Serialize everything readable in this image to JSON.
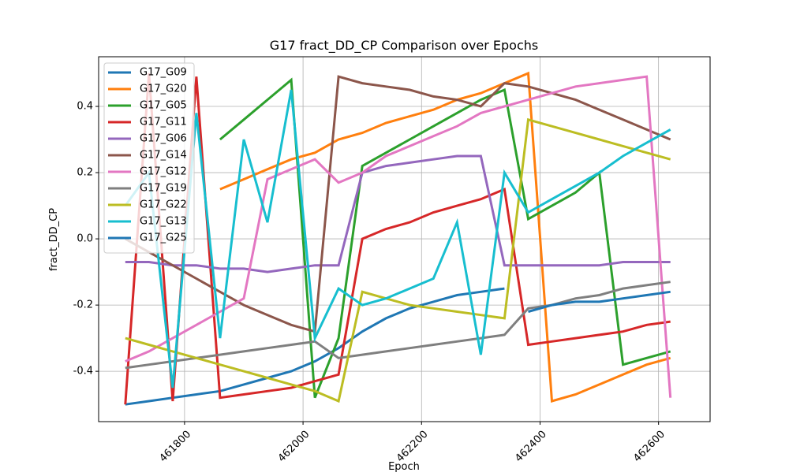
{
  "chart_data": {
    "type": "line",
    "title": "G17 fract_DD_CP Comparison over Epochs",
    "x_label": "Epoch",
    "y_label": "fract_DD_CP",
    "x": [
      461700,
      461740,
      461780,
      461820,
      461860,
      461900,
      461940,
      461980,
      462020,
      462060,
      462100,
      462140,
      462180,
      462220,
      462260,
      462300,
      462340,
      462380,
      462420,
      462460,
      462500,
      462540,
      462580,
      462620
    ],
    "series": [
      {
        "name": "G17_G09",
        "color": "#1f77b4",
        "values": [
          -0.5,
          -0.49,
          -0.48,
          -0.47,
          -0.46,
          -0.44,
          -0.42,
          -0.4,
          -0.37,
          -0.33,
          -0.28,
          -0.24,
          -0.21,
          -0.19,
          -0.17,
          -0.16,
          -0.15,
          null,
          null,
          null,
          null,
          null,
          null,
          null
        ]
      },
      {
        "name": "G17_G20",
        "color": "#ff7f0e",
        "values": [
          null,
          null,
          null,
          null,
          0.15,
          0.18,
          0.21,
          0.24,
          0.26,
          0.3,
          0.32,
          0.35,
          0.37,
          0.39,
          0.42,
          0.44,
          0.47,
          0.5,
          -0.49,
          -0.47,
          -0.44,
          -0.41,
          -0.38,
          -0.36
        ]
      },
      {
        "name": "G17_G05",
        "color": "#2ca02c",
        "values": [
          null,
          null,
          null,
          null,
          0.3,
          0.36,
          0.42,
          0.48,
          -0.48,
          -0.3,
          0.22,
          0.26,
          0.3,
          0.34,
          0.38,
          0.42,
          0.45,
          0.06,
          0.1,
          0.14,
          0.2,
          -0.38,
          -0.36,
          -0.34
        ]
      },
      {
        "name": "G17_G11",
        "color": "#d62728",
        "values": [
          -0.5,
          0.5,
          -0.49,
          0.49,
          -0.48,
          -0.47,
          -0.46,
          -0.45,
          -0.43,
          -0.41,
          0.0,
          0.03,
          0.05,
          0.08,
          0.1,
          0.12,
          0.15,
          -0.32,
          -0.31,
          -0.3,
          -0.29,
          -0.28,
          -0.26,
          -0.25
        ]
      },
      {
        "name": "G17_G06",
        "color": "#9467bd",
        "values": [
          -0.07,
          -0.07,
          -0.08,
          -0.08,
          -0.09,
          -0.09,
          -0.1,
          -0.09,
          -0.08,
          -0.08,
          0.2,
          0.22,
          0.23,
          0.24,
          0.25,
          0.25,
          -0.08,
          -0.08,
          -0.08,
          -0.08,
          -0.08,
          -0.07,
          -0.07,
          -0.07
        ]
      },
      {
        "name": "G17_G14",
        "color": "#8c564b",
        "values": [
          0.0,
          -0.04,
          -0.08,
          -0.12,
          -0.16,
          -0.2,
          -0.23,
          -0.26,
          -0.28,
          0.49,
          0.47,
          0.46,
          0.45,
          0.43,
          0.42,
          0.4,
          0.47,
          0.46,
          0.44,
          0.42,
          0.39,
          0.36,
          0.33,
          0.3
        ]
      },
      {
        "name": "G17_G12",
        "color": "#e377c2",
        "values": [
          -0.37,
          -0.34,
          -0.3,
          -0.26,
          -0.22,
          -0.18,
          0.18,
          0.21,
          0.24,
          0.17,
          0.2,
          0.25,
          0.28,
          0.31,
          0.34,
          0.38,
          0.4,
          0.42,
          0.44,
          0.46,
          0.47,
          0.48,
          0.49,
          -0.48
        ]
      },
      {
        "name": "G17_G19",
        "color": "#7f7f7f",
        "values": [
          -0.39,
          -0.38,
          -0.37,
          -0.36,
          -0.35,
          -0.34,
          -0.33,
          -0.32,
          -0.31,
          -0.36,
          -0.35,
          -0.34,
          -0.33,
          -0.32,
          -0.31,
          -0.3,
          -0.29,
          -0.21,
          -0.2,
          -0.18,
          -0.17,
          -0.15,
          -0.14,
          -0.13
        ]
      },
      {
        "name": "G17_G22",
        "color": "#bcbd22",
        "values": [
          -0.3,
          -0.32,
          -0.34,
          -0.36,
          -0.38,
          -0.4,
          -0.42,
          -0.44,
          -0.46,
          -0.49,
          -0.16,
          -0.18,
          -0.2,
          -0.21,
          -0.22,
          -0.23,
          -0.24,
          0.36,
          0.34,
          0.32,
          0.3,
          0.28,
          0.26,
          0.24
        ]
      },
      {
        "name": "G17_G13",
        "color": "#17becf",
        "values": [
          0.1,
          0.2,
          -0.45,
          0.38,
          -0.3,
          0.3,
          0.05,
          0.45,
          -0.3,
          -0.15,
          -0.2,
          -0.18,
          -0.15,
          -0.12,
          0.05,
          -0.35,
          0.2,
          0.08,
          0.12,
          0.16,
          0.2,
          0.25,
          0.29,
          0.33
        ]
      },
      {
        "name": "G17_G25",
        "color": "#1f77b4",
        "values": [
          null,
          null,
          null,
          null,
          null,
          null,
          null,
          null,
          null,
          null,
          null,
          null,
          null,
          null,
          null,
          null,
          null,
          -0.22,
          -0.2,
          -0.19,
          -0.19,
          -0.18,
          -0.17,
          -0.16
        ]
      }
    ],
    "xlim": [
      461655,
      462687
    ],
    "ylim": [
      -0.552,
      0.55
    ],
    "xticks": [
      461800,
      462000,
      462200,
      462400,
      462600
    ],
    "yticks": [
      -0.4,
      -0.2,
      {
        "value": 0,
        "label": "0.0"
      },
      0.2,
      0.4
    ],
    "grid": true,
    "legend": "upper left"
  }
}
